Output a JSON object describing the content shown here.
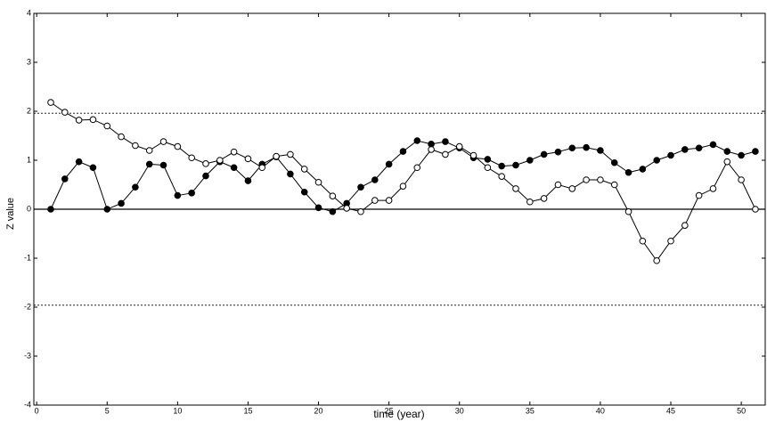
{
  "chart_data": {
    "type": "line",
    "x_label": "time (year)",
    "y_label": "Z value",
    "x": [
      1,
      2,
      3,
      4,
      5,
      6,
      7,
      8,
      9,
      10,
      11,
      12,
      13,
      14,
      15,
      16,
      17,
      18,
      19,
      20,
      21,
      22,
      23,
      24,
      25,
      26,
      27,
      28,
      29,
      30,
      31,
      32,
      33,
      34,
      35,
      36,
      37,
      38,
      39,
      40,
      41,
      42,
      43,
      44,
      45,
      46,
      47,
      48,
      49,
      50,
      51
    ],
    "series": [
      {
        "color": "#000000",
        "marker": "filled",
        "values": [
          0,
          0.62,
          0.97,
          0.85,
          0,
          0.12,
          0.45,
          0.92,
          0.9,
          0.28,
          0.33,
          0.68,
          0.97,
          0.85,
          0.58,
          0.92,
          1.07,
          0.72,
          0.35,
          0.03,
          -0.05,
          0.12,
          0.45,
          0.6,
          0.92,
          1.18,
          1.4,
          1.33,
          1.38,
          1.25,
          1.05,
          1.02,
          0.88,
          0.9,
          1.0,
          1.12,
          1.17,
          1.25,
          1.26,
          1.2,
          0.95,
          0.75,
          0.82,
          1.0,
          1.1,
          1.22,
          1.25,
          1.32,
          1.18,
          1.1,
          1.18
        ]
      },
      {
        "color": "#000000",
        "marker": "open",
        "values": [
          2.18,
          1.98,
          1.82,
          1.83,
          1.7,
          1.48,
          1.3,
          1.2,
          1.38,
          1.28,
          1.05,
          0.93,
          1.0,
          1.17,
          1.03,
          0.85,
          1.08,
          1.12,
          0.82,
          0.55,
          0.27,
          0.02,
          -0.05,
          0.18,
          0.18,
          0.47,
          0.85,
          1.22,
          1.12,
          1.28,
          1.1,
          0.85,
          0.67,
          0.42,
          0.15,
          0.22,
          0.5,
          0.42,
          0.6,
          0.6,
          0.5,
          -0.05,
          -0.65,
          -1.05,
          -0.65,
          -0.33,
          0.28,
          0.42,
          0.97,
          0.6,
          0
        ]
      }
    ],
    "reference_lines": [
      {
        "value": 1.96,
        "style": "dashed"
      },
      {
        "value": -1.96,
        "style": "dashed"
      },
      {
        "value": 0,
        "style": "solid"
      }
    ],
    "xlim": [
      -0.2,
      51.7
    ],
    "ylim": [
      -4,
      4
    ],
    "xticks": [
      0,
      5,
      10,
      15,
      20,
      25,
      30,
      35,
      40,
      45,
      50
    ],
    "yticks": [
      -4,
      -3,
      -2,
      -1,
      0,
      1,
      2,
      3,
      4
    ]
  }
}
